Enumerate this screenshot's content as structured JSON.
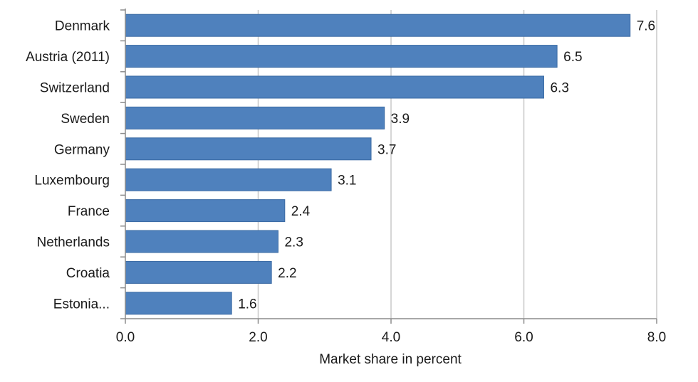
{
  "chart_data": {
    "type": "bar",
    "orientation": "horizontal",
    "title": "",
    "xlabel": "Market share in percent",
    "ylabel": "",
    "categories": [
      "Denmark",
      "Austria (2011)",
      "Switzerland",
      "Sweden",
      "Germany",
      "Luxembourg",
      "France",
      "Netherlands",
      "Croatia",
      "Estonia..."
    ],
    "values": [
      7.6,
      6.5,
      6.3,
      3.9,
      3.7,
      3.1,
      2.4,
      2.3,
      2.2,
      1.6
    ],
    "value_labels": [
      "7.6",
      "6.5",
      "6.3",
      "3.9",
      "3.7",
      "3.1",
      "2.4",
      "2.3",
      "2.2",
      "1.6"
    ],
    "xlim": [
      0,
      8
    ],
    "xticks": [
      0,
      2,
      4,
      6,
      8
    ],
    "xtick_labels": [
      "0.0",
      "2.0",
      "4.0",
      "6.0",
      "8.0"
    ],
    "grid": "vertical",
    "legend": "none",
    "colors": {
      "bar_fill": "#4f81bd",
      "bar_stroke": "#3a6aa3",
      "grid": "#c8c8c8",
      "axis": "#8c8c8c"
    }
  }
}
